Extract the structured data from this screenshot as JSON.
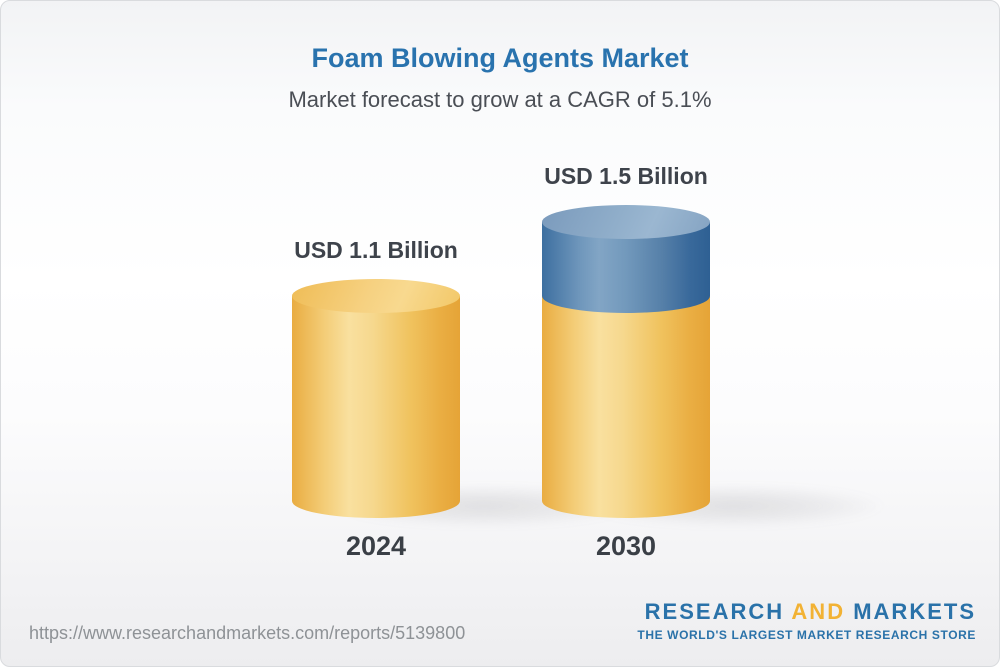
{
  "header": {
    "title": "Foam Blowing Agents Market",
    "subtitle": "Market forecast to grow at a CAGR of 5.1%"
  },
  "chart_data": {
    "type": "bar",
    "categories": [
      "2024",
      "2030"
    ],
    "values": [
      1.1,
      1.5
    ],
    "unit": "USD Billion",
    "bar_labels": [
      "USD 1.1 Billion",
      "USD 1.5 Billion"
    ],
    "cagr": "5.1%",
    "title": "Foam Blowing Agents Market",
    "xlabel": "",
    "ylabel": "",
    "ylim": [
      0,
      1.6
    ],
    "grid": false,
    "legend": "none",
    "colors": {
      "base_segment": "#f0bd53",
      "growth_segment": "#4c7fac"
    },
    "notes": "2030 bar drawn as yellow base equal to 2024 value (1.1) plus blue growth segment (0.4) on top; 3D cylinder style"
  },
  "footer": {
    "url": "https://www.researchandmarkets.com/reports/5139800",
    "logo": {
      "part1": "RESEARCH",
      "part2": "AND",
      "part3": "MARKETS",
      "tagline": "THE WORLD'S LARGEST MARKET RESEARCH STORE"
    }
  }
}
